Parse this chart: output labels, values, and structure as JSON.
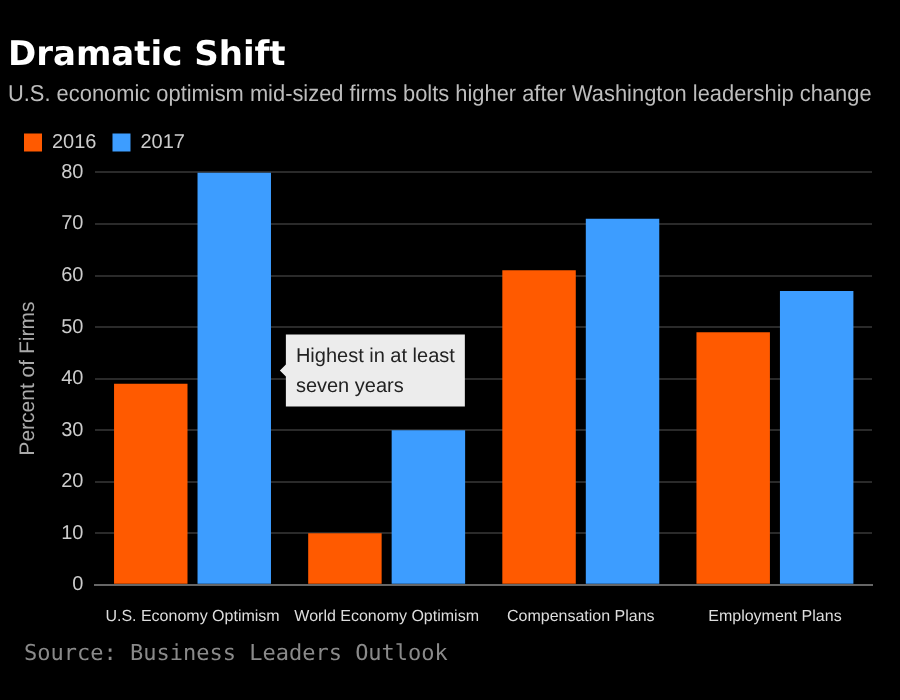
{
  "chart_data": {
    "type": "bar",
    "title": "Dramatic Shift",
    "subtitle": "U.S. economic optimism mid-sized firms bolts higher after Washington leadership change",
    "ylabel": "Percent of Firms",
    "categories": [
      "U.S. Economy Optimism",
      "World Economy Optimism",
      "Compensation Plans",
      "Employment Plans"
    ],
    "series": [
      {
        "name": "2016",
        "color": "#ff5a00",
        "values": [
          39,
          10,
          61,
          49
        ]
      },
      {
        "name": "2017",
        "color": "#3d9dff",
        "values": [
          80,
          30,
          71,
          57
        ]
      }
    ],
    "ylim": [
      0,
      80
    ],
    "yticks": [
      0,
      10,
      20,
      30,
      40,
      50,
      60,
      70,
      80
    ],
    "grid": "y",
    "legend": "top left",
    "annotations": [
      "Highest in at least seven years",
      "Source: Business Leaders Outlook"
    ]
  }
}
